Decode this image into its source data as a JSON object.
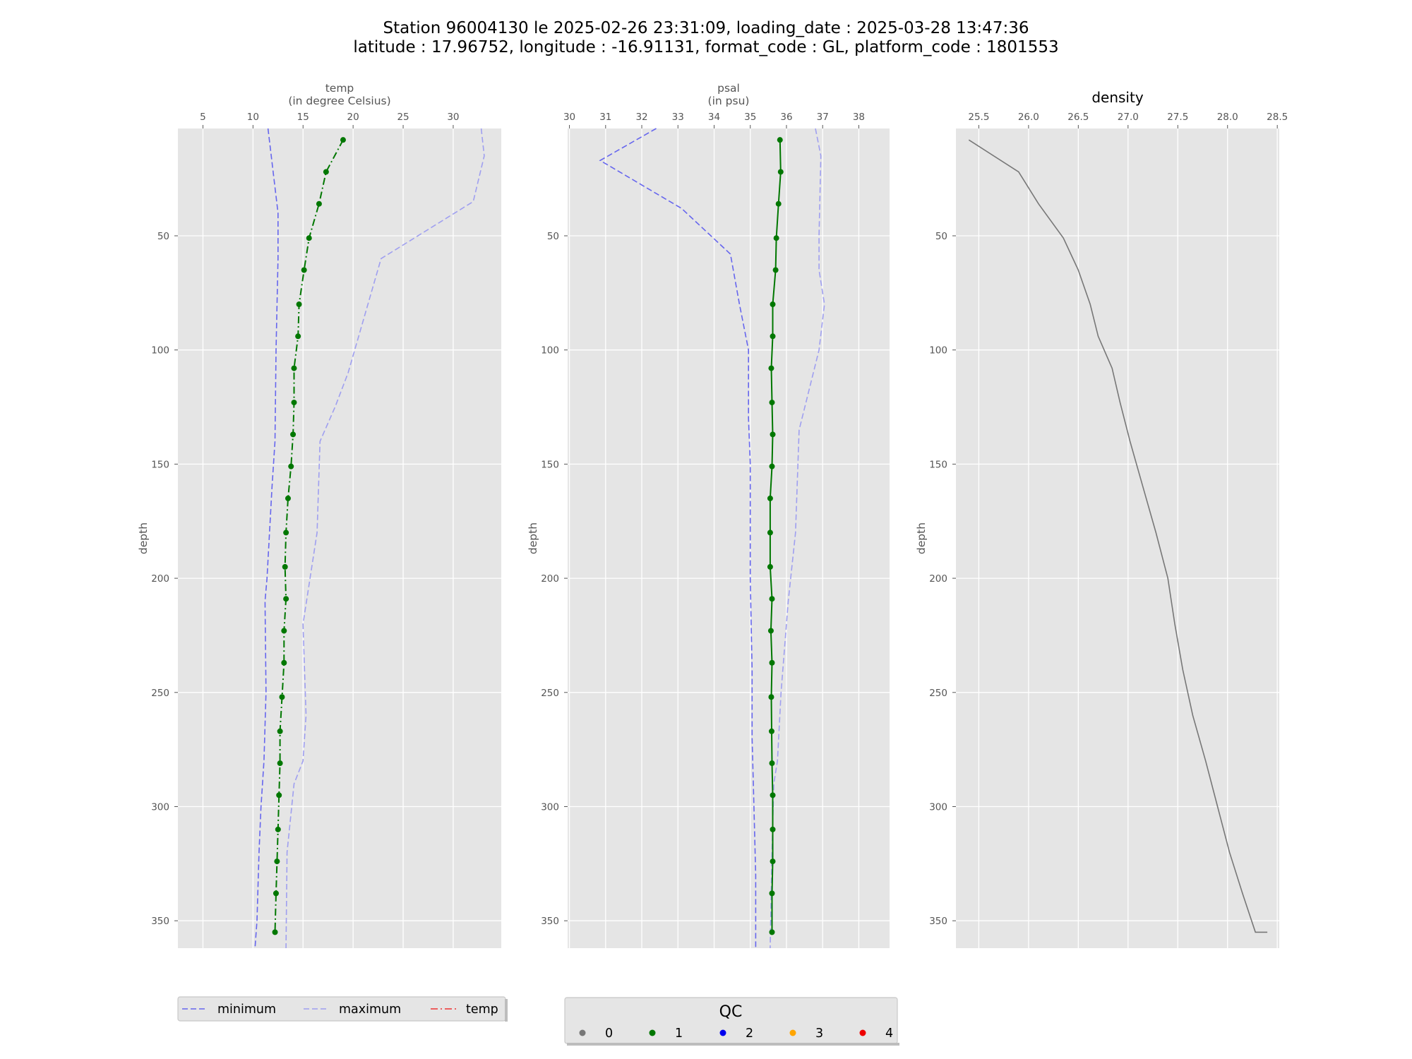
{
  "title": {
    "line1": "Station 96004130 le 2025-02-26 23:31:09, loading_date : 2025-03-28 13:47:36",
    "line2": "latitude : 17.96752, longitude : -16.91131, format_code : GL, platform_code : 1801553"
  },
  "colors": {
    "minimum": "#6666ee",
    "maximum": "#9f9ff0",
    "qc1": "#007700",
    "density": "#777777",
    "panel_bg": "#e5e5e5",
    "grid": "#ffffff"
  },
  "legend": {
    "items": [
      {
        "label": "minimum",
        "color": "#6666ee",
        "dash": "8,4"
      },
      {
        "label": "maximum",
        "color": "#9f9ff0",
        "dash": "8,4"
      },
      {
        "label": "temp",
        "color": "#ee3333",
        "dash": "10,4,2,4"
      }
    ]
  },
  "qc_legend": {
    "title": "QC",
    "items": [
      {
        "label": "0",
        "color": "#777777"
      },
      {
        "label": "1",
        "color": "#007700"
      },
      {
        "label": "2",
        "color": "#0000ee"
      },
      {
        "label": "3",
        "color": "#ffa500"
      },
      {
        "label": "4",
        "color": "#ee0000"
      }
    ]
  },
  "chart_data": [
    {
      "type": "line",
      "xlabel_line1": "temp",
      "xlabel_line2": "(in degree Celsius)",
      "ylabel": "depth",
      "xlim": [
        2.5,
        34.8
      ],
      "ylim": [
        362,
        3
      ],
      "xticks": [
        5,
        10,
        15,
        20,
        25,
        30
      ],
      "yticks": [
        50,
        100,
        150,
        200,
        250,
        300,
        350
      ],
      "series": [
        {
          "name": "minimum",
          "style": "dashed",
          "x": [
            11.5,
            12.5,
            12.5,
            12.3,
            12.2,
            11.9,
            11.4,
            11.2,
            11.3,
            11.1,
            10.8,
            10.6,
            10.4,
            10.2
          ],
          "y": [
            3,
            40,
            60,
            100,
            140,
            160,
            200,
            210,
            250,
            280,
            300,
            320,
            350,
            362
          ]
        },
        {
          "name": "maximum",
          "style": "dashed",
          "x": [
            32.8,
            33.1,
            32.0,
            22.8,
            19.5,
            18.2,
            16.7,
            16.4,
            15.0,
            15.3,
            15.0,
            14.1,
            13.4,
            13.3
          ],
          "y": [
            3,
            15,
            35,
            60,
            110,
            125,
            140,
            180,
            220,
            260,
            280,
            290,
            320,
            362
          ]
        },
        {
          "name": "temp",
          "style": "dashdot",
          "qc": 1,
          "x": [
            19.0,
            17.3,
            16.6,
            15.6,
            15.1,
            14.6,
            14.5,
            14.1,
            14.1,
            14.0,
            13.8,
            13.5,
            13.3,
            13.2,
            13.3,
            13.1,
            13.1,
            12.9,
            12.7,
            12.7,
            12.6,
            12.5,
            12.4,
            12.3,
            12.2
          ],
          "y": [
            8,
            22,
            36,
            51,
            65,
            80,
            94,
            108,
            123,
            137,
            151,
            165,
            180,
            195,
            209,
            223,
            237,
            252,
            267,
            281,
            295,
            310,
            324,
            338,
            355
          ]
        }
      ]
    },
    {
      "type": "line",
      "xlabel_line1": "psal",
      "xlabel_line2": "(in psu)",
      "ylabel": "depth",
      "xlim": [
        29.95,
        38.85
      ],
      "ylim": [
        362,
        3
      ],
      "xticks": [
        30,
        31,
        32,
        33,
        34,
        35,
        36,
        37,
        38
      ],
      "yticks": [
        50,
        100,
        150,
        200,
        250,
        300,
        350
      ],
      "series": [
        {
          "name": "minimum",
          "style": "dashed",
          "x": [
            32.4,
            30.85,
            33.1,
            34.45,
            34.7,
            34.95,
            34.95,
            35.0,
            35.0,
            35.05,
            35.05,
            35.1,
            35.15,
            35.15
          ],
          "y": [
            3,
            17,
            38,
            58,
            80,
            100,
            130,
            150,
            200,
            240,
            270,
            300,
            330,
            362
          ]
        },
        {
          "name": "maximum",
          "style": "dashed",
          "x": [
            36.8,
            36.95,
            36.9,
            36.9,
            37.05,
            36.9,
            36.35,
            36.25,
            36.05,
            35.85,
            35.75,
            35.65,
            35.6,
            35.55
          ],
          "y": [
            3,
            15,
            50,
            65,
            80,
            100,
            135,
            180,
            210,
            250,
            280,
            290,
            320,
            362
          ]
        },
        {
          "name": "psal",
          "style": "solid",
          "qc": 1,
          "x": [
            35.82,
            35.84,
            35.78,
            35.72,
            35.7,
            35.62,
            35.62,
            35.58,
            35.6,
            35.62,
            35.6,
            35.55,
            35.55,
            35.55,
            35.6,
            35.57,
            35.6,
            35.58,
            35.59,
            35.6,
            35.62,
            35.62,
            35.62,
            35.6,
            35.6
          ],
          "y": [
            8,
            22,
            36,
            51,
            65,
            80,
            94,
            108,
            123,
            137,
            151,
            165,
            180,
            195,
            209,
            223,
            237,
            252,
            267,
            281,
            295,
            310,
            324,
            338,
            355
          ]
        }
      ]
    },
    {
      "type": "line",
      "title": "density",
      "ylabel": "depth",
      "xlim": [
        25.27,
        28.52
      ],
      "ylim": [
        362,
        3
      ],
      "xticks": [
        25.5,
        26.0,
        26.5,
        27.0,
        27.5,
        28.0,
        28.5
      ],
      "xtick_labels": [
        "25.5",
        "26.0",
        "26.5",
        "27.0",
        "27.5",
        "28.0",
        "28.5"
      ],
      "yticks": [
        50,
        100,
        150,
        200,
        250,
        300,
        350
      ],
      "series": [
        {
          "name": "density",
          "style": "solid",
          "x": [
            25.4,
            25.9,
            26.1,
            26.35,
            26.5,
            26.62,
            26.7,
            26.84,
            26.92,
            27.02,
            27.15,
            27.28,
            27.4,
            27.47,
            27.55,
            27.65,
            27.78,
            27.9,
            28.02,
            28.15,
            28.28,
            28.4
          ],
          "y": [
            8,
            22,
            36,
            51,
            65,
            80,
            94,
            108,
            123,
            140,
            160,
            180,
            200,
            220,
            240,
            260,
            280,
            300,
            320,
            338,
            355,
            355
          ]
        }
      ]
    }
  ]
}
